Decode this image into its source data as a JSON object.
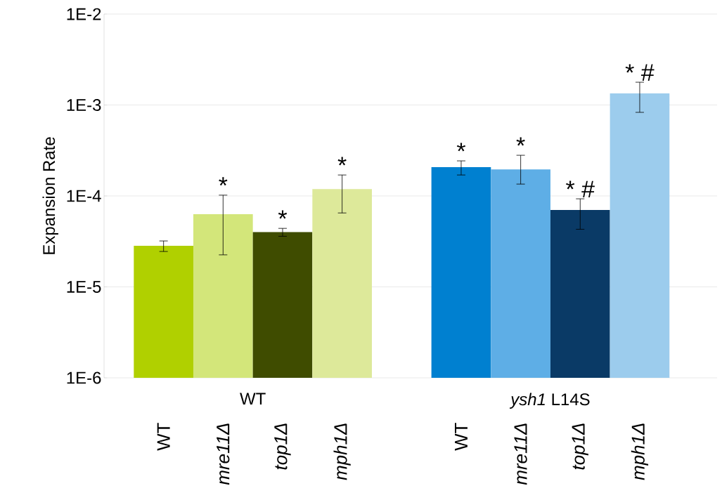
{
  "chart_data": {
    "type": "bar",
    "ylabel": "Expansion Rate",
    "categories": [
      "WT",
      "*mre11Δ*",
      "*top1Δ*",
      "*mph1Δ*",
      "WT",
      "*mre11Δ*",
      "*top1Δ*",
      "*mph1Δ*"
    ],
    "values": [
      2.83e-05,
      6.3e-05,
      4e-05,
      0.000119,
      0.000207,
      0.000196,
      7e-05,
      0.00134
    ],
    "errors": [
      [
        2.45e-05,
        3.2e-05
      ],
      [
        2.25e-05,
        0.000102
      ],
      [
        3.6e-05,
        4.4e-05
      ],
      [
        6.5e-05,
        0.00017
      ],
      [
        0.00017,
        0.000243
      ],
      [
        0.000135,
        0.00028
      ],
      [
        4.3e-05,
        9.3e-05
      ],
      [
        0.00083,
        0.00178
      ]
    ],
    "colors": [
      "#b0d000",
      "#d3e67a",
      "#3f4c00",
      "#dde99a",
      "#0080d0",
      "#5eaee6",
      "#0a3a66",
      "#9ccced"
    ],
    "value_labels": [
      null,
      "*",
      "*",
      "*",
      "*",
      "*",
      "* #",
      "* #"
    ],
    "annotations": [
      "WT",
      "*ysh1* L14S"
    ],
    "log": true,
    "ylim": [
      1e-06,
      0.01
    ],
    "yticks": [
      {
        "value": 1e-06,
        "label": "1E-6"
      },
      {
        "value": 1e-05,
        "label": "1E-5"
      },
      {
        "value": 0.0001,
        "label": "1E-4"
      },
      {
        "value": 0.001,
        "label": "1E-3"
      },
      {
        "value": 0.01,
        "label": "1E-2"
      }
    ],
    "grid": "y"
  }
}
